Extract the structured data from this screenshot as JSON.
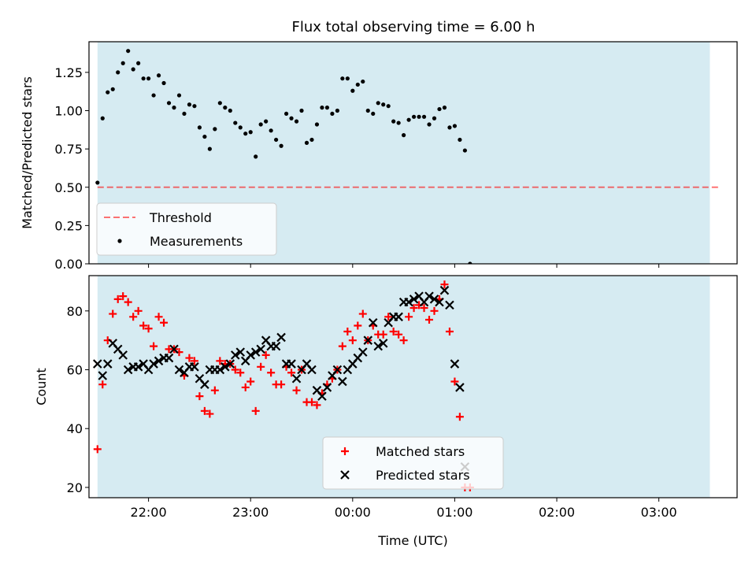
{
  "figure": {
    "title": "Flux total observing time = 6.00 h"
  },
  "colors": {
    "shade": "#add8e6",
    "threshold": "#ff0000",
    "measurements": "#000000",
    "matched": "#ff0000",
    "predicted": "#000000"
  },
  "chart_data": [
    {
      "type": "scatter",
      "ylabel": "Matched/Predicted stars",
      "xlim": [
        "21:25",
        "03:46"
      ],
      "ylim": [
        0,
        1.45
      ],
      "yticks": [
        "0.00",
        "0.25",
        "0.50",
        "0.75",
        "1.00",
        "1.25"
      ],
      "shaded_span": [
        "21:30",
        "03:30"
      ],
      "threshold": {
        "name": "Threshold",
        "value": 0.5,
        "x_range": [
          "21:30",
          "03:35"
        ],
        "style": "dashed"
      },
      "legend": {
        "placement": "lower-left",
        "entries": [
          "Threshold",
          "Measurements"
        ]
      },
      "series": [
        {
          "name": "Measurements",
          "marker": "dot",
          "points": [
            [
              "21:30",
              0.53
            ],
            [
              "21:33",
              0.95
            ],
            [
              "21:36",
              1.12
            ],
            [
              "21:39",
              1.14
            ],
            [
              "21:42",
              1.25
            ],
            [
              "21:45",
              1.31
            ],
            [
              "21:48",
              1.39
            ],
            [
              "21:51",
              1.27
            ],
            [
              "21:54",
              1.31
            ],
            [
              "21:57",
              1.21
            ],
            [
              "22:00",
              1.21
            ],
            [
              "22:03",
              1.1
            ],
            [
              "22:06",
              1.23
            ],
            [
              "22:09",
              1.18
            ],
            [
              "22:12",
              1.05
            ],
            [
              "22:15",
              1.02
            ],
            [
              "22:18",
              1.1
            ],
            [
              "22:21",
              0.98
            ],
            [
              "22:24",
              1.04
            ],
            [
              "22:27",
              1.03
            ],
            [
              "22:30",
              0.89
            ],
            [
              "22:33",
              0.83
            ],
            [
              "22:36",
              0.75
            ],
            [
              "22:39",
              0.88
            ],
            [
              "22:42",
              1.05
            ],
            [
              "22:45",
              1.02
            ],
            [
              "22:48",
              1.0
            ],
            [
              "22:51",
              0.92
            ],
            [
              "22:54",
              0.89
            ],
            [
              "22:57",
              0.85
            ],
            [
              "23:00",
              0.86
            ],
            [
              "23:03",
              0.7
            ],
            [
              "23:06",
              0.91
            ],
            [
              "23:09",
              0.93
            ],
            [
              "23:12",
              0.87
            ],
            [
              "23:15",
              0.81
            ],
            [
              "23:18",
              0.77
            ],
            [
              "23:21",
              0.98
            ],
            [
              "23:24",
              0.95
            ],
            [
              "23:27",
              0.93
            ],
            [
              "23:30",
              1.0
            ],
            [
              "23:33",
              0.79
            ],
            [
              "23:36",
              0.81
            ],
            [
              "23:39",
              0.91
            ],
            [
              "23:42",
              1.02
            ],
            [
              "23:45",
              1.02
            ],
            [
              "23:48",
              0.98
            ],
            [
              "23:51",
              1.0
            ],
            [
              "23:54",
              1.21
            ],
            [
              "23:57",
              1.21
            ],
            [
              "00:00",
              1.13
            ],
            [
              "00:03",
              1.17
            ],
            [
              "00:06",
              1.19
            ],
            [
              "00:09",
              1.0
            ],
            [
              "00:12",
              0.98
            ],
            [
              "00:15",
              1.05
            ],
            [
              "00:18",
              1.04
            ],
            [
              "00:21",
              1.03
            ],
            [
              "00:24",
              0.93
            ],
            [
              "00:27",
              0.92
            ],
            [
              "00:30",
              0.84
            ],
            [
              "00:33",
              0.94
            ],
            [
              "00:36",
              0.96
            ],
            [
              "00:39",
              0.96
            ],
            [
              "00:42",
              0.96
            ],
            [
              "00:45",
              0.91
            ],
            [
              "00:48",
              0.95
            ],
            [
              "00:51",
              1.01
            ],
            [
              "00:54",
              1.02
            ],
            [
              "00:57",
              0.89
            ],
            [
              "01:00",
              0.9
            ],
            [
              "01:03",
              0.81
            ],
            [
              "01:06",
              0.74
            ],
            [
              "01:09",
              0.0
            ]
          ]
        }
      ]
    },
    {
      "type": "scatter",
      "xlabel": "Time (UTC)",
      "ylabel": "Count",
      "xlim": [
        "21:25",
        "03:46"
      ],
      "ylim": [
        16.5,
        92
      ],
      "xticks": [
        "22:00",
        "23:00",
        "00:00",
        "01:00",
        "02:00",
        "03:00"
      ],
      "yticks": [
        "20",
        "40",
        "60",
        "80"
      ],
      "shaded_span": [
        "21:30",
        "03:30"
      ],
      "legend": {
        "placement": "lower-center",
        "entries": [
          "Matched stars",
          "Predicted stars"
        ]
      },
      "series": [
        {
          "name": "Matched stars",
          "marker": "plus",
          "points": [
            [
              "21:30",
              33
            ],
            [
              "21:33",
              55
            ],
            [
              "21:36",
              70
            ],
            [
              "21:39",
              79
            ],
            [
              "21:42",
              84
            ],
            [
              "21:45",
              85
            ],
            [
              "21:48",
              83
            ],
            [
              "21:51",
              78
            ],
            [
              "21:54",
              80
            ],
            [
              "21:57",
              75
            ],
            [
              "22:00",
              74
            ],
            [
              "22:03",
              68
            ],
            [
              "22:06",
              78
            ],
            [
              "22:09",
              76
            ],
            [
              "22:12",
              67
            ],
            [
              "22:15",
              67
            ],
            [
              "22:18",
              66
            ],
            [
              "22:21",
              58
            ],
            [
              "22:24",
              64
            ],
            [
              "22:27",
              63
            ],
            [
              "22:30",
              51
            ],
            [
              "22:33",
              46
            ],
            [
              "22:36",
              45
            ],
            [
              "22:39",
              53
            ],
            [
              "22:42",
              63
            ],
            [
              "22:45",
              62
            ],
            [
              "22:48",
              62
            ],
            [
              "22:51",
              60
            ],
            [
              "22:54",
              59
            ],
            [
              "22:57",
              54
            ],
            [
              "23:00",
              56
            ],
            [
              "23:03",
              46
            ],
            [
              "23:06",
              61
            ],
            [
              "23:09",
              65
            ],
            [
              "23:12",
              59
            ],
            [
              "23:15",
              55
            ],
            [
              "23:18",
              55
            ],
            [
              "23:21",
              61
            ],
            [
              "23:24",
              59
            ],
            [
              "23:27",
              53
            ],
            [
              "23:30",
              60
            ],
            [
              "23:33",
              49
            ],
            [
              "23:36",
              49
            ],
            [
              "23:39",
              48
            ],
            [
              "23:42",
              52
            ],
            [
              "23:45",
              55
            ],
            [
              "23:48",
              57
            ],
            [
              "23:51",
              60
            ],
            [
              "23:54",
              68
            ],
            [
              "23:57",
              73
            ],
            [
              "00:00",
              70
            ],
            [
              "00:03",
              75
            ],
            [
              "00:06",
              79
            ],
            [
              "00:09",
              70
            ],
            [
              "00:12",
              75
            ],
            [
              "00:15",
              72
            ],
            [
              "00:18",
              72
            ],
            [
              "00:21",
              78
            ],
            [
              "00:24",
              73
            ],
            [
              "00:27",
              72
            ],
            [
              "00:30",
              70
            ],
            [
              "00:33",
              78
            ],
            [
              "00:36",
              81
            ],
            [
              "00:39",
              82
            ],
            [
              "00:42",
              81
            ],
            [
              "00:45",
              77
            ],
            [
              "00:48",
              80
            ],
            [
              "00:51",
              84
            ],
            [
              "00:54",
              89
            ],
            [
              "00:57",
              73
            ],
            [
              "01:00",
              56
            ],
            [
              "01:03",
              44
            ],
            [
              "01:06",
              20
            ],
            [
              "01:09",
              20
            ]
          ]
        },
        {
          "name": "Predicted stars",
          "marker": "x",
          "points": [
            [
              "21:30",
              62
            ],
            [
              "21:33",
              58
            ],
            [
              "21:36",
              62
            ],
            [
              "21:39",
              69
            ],
            [
              "21:42",
              67
            ],
            [
              "21:45",
              65
            ],
            [
              "21:48",
              60
            ],
            [
              "21:51",
              61
            ],
            [
              "21:54",
              61
            ],
            [
              "21:57",
              62
            ],
            [
              "22:00",
              60
            ],
            [
              "22:03",
              62
            ],
            [
              "22:06",
              63
            ],
            [
              "22:09",
              64
            ],
            [
              "22:12",
              64
            ],
            [
              "22:15",
              67
            ],
            [
              "22:18",
              60
            ],
            [
              "22:21",
              59
            ],
            [
              "22:24",
              61
            ],
            [
              "22:27",
              61
            ],
            [
              "22:30",
              57
            ],
            [
              "22:33",
              55
            ],
            [
              "22:36",
              60
            ],
            [
              "22:39",
              60
            ],
            [
              "22:42",
              60
            ],
            [
              "22:45",
              61
            ],
            [
              "22:48",
              62
            ],
            [
              "22:51",
              65
            ],
            [
              "22:54",
              66
            ],
            [
              "22:57",
              63
            ],
            [
              "23:00",
              65
            ],
            [
              "23:03",
              66
            ],
            [
              "23:06",
              67
            ],
            [
              "23:09",
              70
            ],
            [
              "23:12",
              68
            ],
            [
              "23:15",
              68
            ],
            [
              "23:18",
              71
            ],
            [
              "23:21",
              62
            ],
            [
              "23:24",
              62
            ],
            [
              "23:27",
              57
            ],
            [
              "23:30",
              60
            ],
            [
              "23:33",
              62
            ],
            [
              "23:36",
              60
            ],
            [
              "23:39",
              53
            ],
            [
              "23:42",
              51
            ],
            [
              "23:45",
              54
            ],
            [
              "23:48",
              58
            ],
            [
              "23:51",
              60
            ],
            [
              "23:54",
              56
            ],
            [
              "23:57",
              60
            ],
            [
              "00:00",
              62
            ],
            [
              "00:03",
              64
            ],
            [
              "00:06",
              66
            ],
            [
              "00:09",
              70
            ],
            [
              "00:12",
              76
            ],
            [
              "00:15",
              68
            ],
            [
              "00:18",
              69
            ],
            [
              "00:21",
              76
            ],
            [
              "00:24",
              78
            ],
            [
              "00:27",
              78
            ],
            [
              "00:30",
              83
            ],
            [
              "00:33",
              83
            ],
            [
              "00:36",
              84
            ],
            [
              "00:39",
              85
            ],
            [
              "00:42",
              83
            ],
            [
              "00:45",
              85
            ],
            [
              "00:48",
              84
            ],
            [
              "00:51",
              83
            ],
            [
              "00:54",
              87
            ],
            [
              "00:57",
              82
            ],
            [
              "01:00",
              62
            ],
            [
              "01:03",
              54
            ],
            [
              "01:06",
              27
            ]
          ]
        }
      ]
    }
  ]
}
